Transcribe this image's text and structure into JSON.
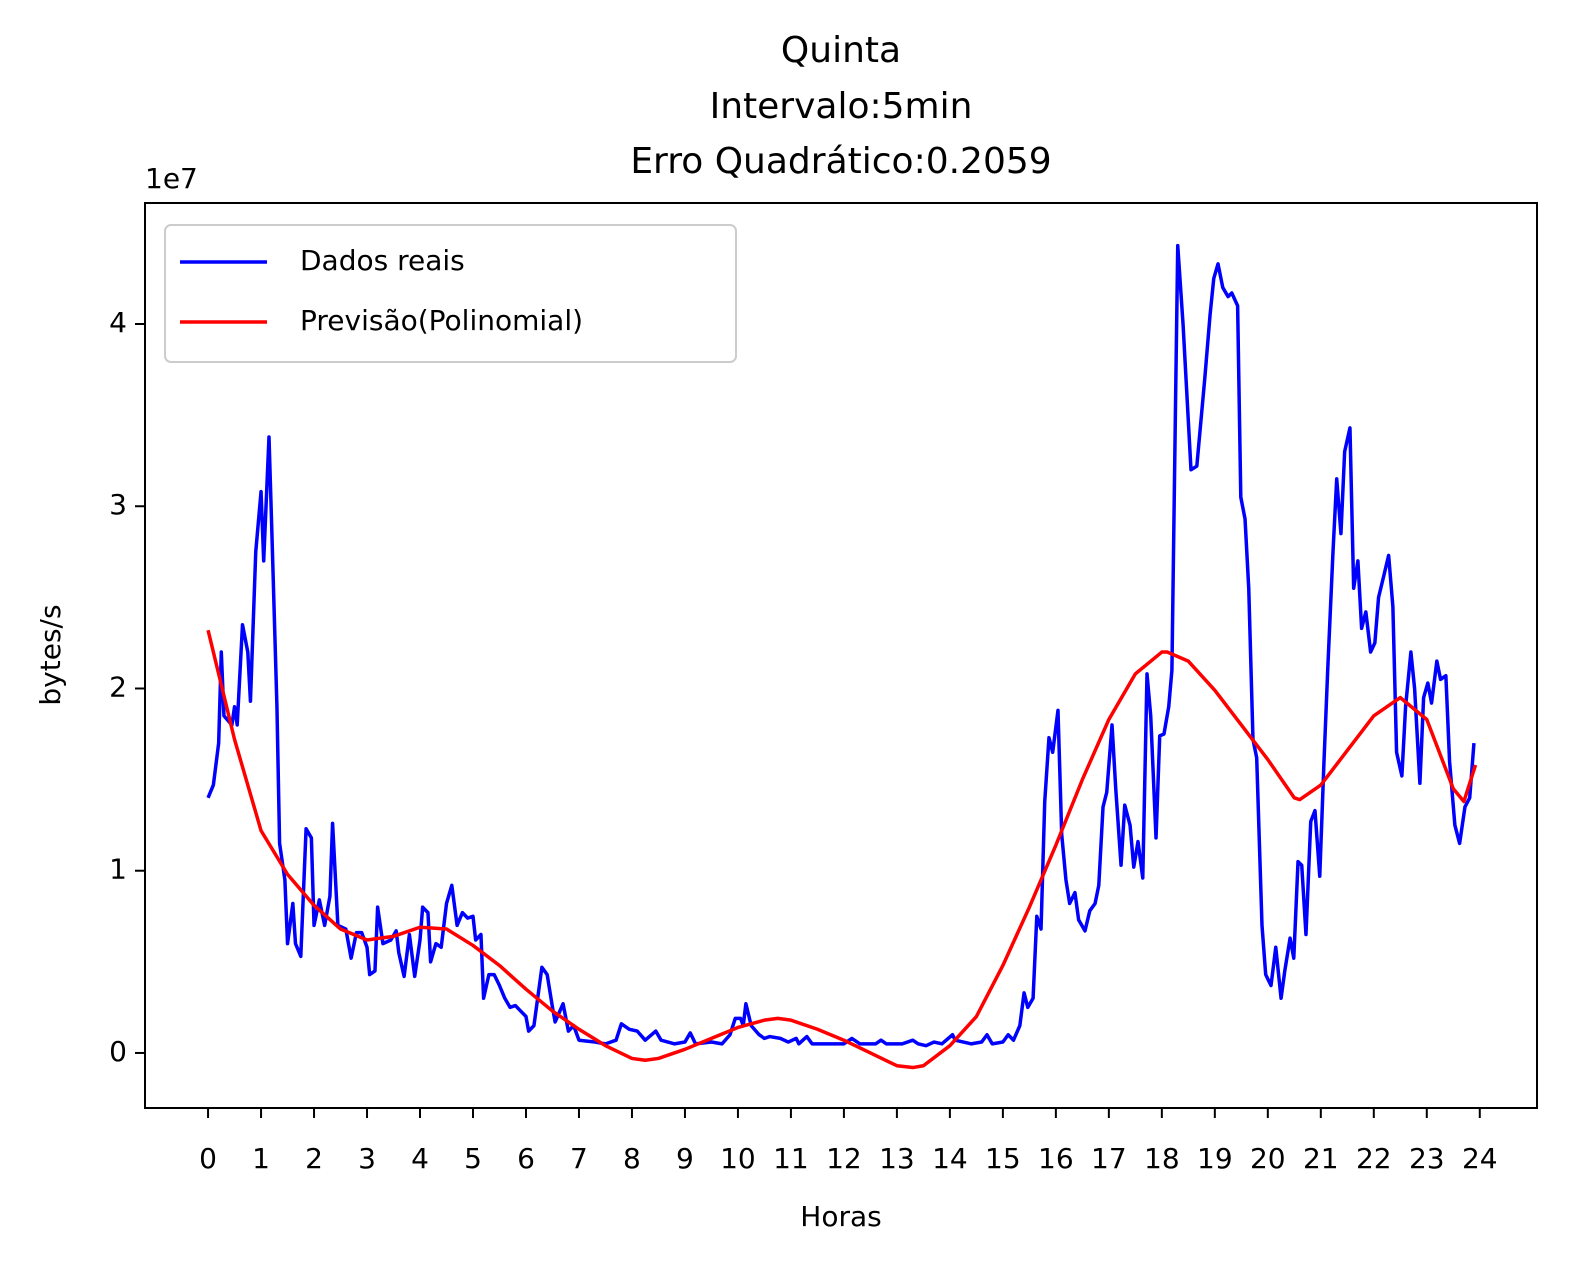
{
  "chart_data": {
    "type": "line",
    "title": [
      "Quinta",
      "Intervalo:5min",
      "Erro Quadrático:0.2059"
    ],
    "x_label": "Horas",
    "y_label": "bytes/s",
    "y_offset_label": "1e7",
    "xlim": [
      -1.19,
      25.08
    ],
    "ylim": [
      -0.302,
      4.664
    ],
    "xticks": [
      0,
      1,
      2,
      3,
      4,
      5,
      6,
      7,
      8,
      9,
      10,
      11,
      12,
      13,
      14,
      15,
      16,
      17,
      18,
      19,
      20,
      21,
      22,
      23,
      24
    ],
    "yticks": [
      0,
      1,
      2,
      3,
      4
    ],
    "legend": "upper left",
    "series": [
      {
        "name": "Dados reais",
        "color": "#0000ff",
        "x": [
          0,
          0.1,
          0.2,
          0.25,
          0.3,
          0.45,
          0.5,
          0.55,
          0.65,
          0.75,
          0.8,
          0.9,
          1.0,
          1.05,
          1.15,
          1.2,
          1.3,
          1.35,
          1.45,
          1.5,
          1.6,
          1.65,
          1.75,
          1.85,
          1.95,
          2.0,
          2.1,
          2.2,
          2.3,
          2.35,
          2.45,
          2.6,
          2.7,
          2.8,
          2.9,
          3.0,
          3.05,
          3.15,
          3.2,
          3.3,
          3.45,
          3.55,
          3.6,
          3.7,
          3.8,
          3.9,
          4.0,
          4.05,
          4.15,
          4.2,
          4.3,
          4.4,
          4.5,
          4.6,
          4.7,
          4.8,
          4.9,
          5.0,
          5.05,
          5.15,
          5.2,
          5.3,
          5.4,
          5.5,
          5.6,
          5.7,
          5.8,
          5.9,
          6.0,
          6.05,
          6.15,
          6.3,
          6.4,
          6.5,
          6.55,
          6.7,
          6.8,
          6.9,
          7.0,
          7.3,
          7.5,
          7.7,
          7.8,
          7.95,
          8.1,
          8.25,
          8.45,
          8.55,
          8.8,
          9.0,
          9.1,
          9.2,
          9.5,
          9.7,
          9.85,
          9.95,
          10.05,
          10.1,
          10.15,
          10.25,
          10.4,
          10.5,
          10.6,
          10.8,
          10.95,
          11.1,
          11.15,
          11.3,
          11.4,
          11.8,
          12.0,
          12.15,
          12.3,
          12.6,
          12.7,
          12.8,
          13.1,
          13.3,
          13.4,
          13.55,
          13.7,
          13.85,
          14.05,
          14.1,
          14.4,
          14.6,
          14.7,
          14.8,
          15.0,
          15.1,
          15.2,
          15.32,
          15.4,
          15.47,
          15.57,
          15.64,
          15.72,
          15.79,
          15.87,
          15.94,
          16.04,
          16.11,
          16.19,
          16.26,
          16.36,
          16.43,
          16.55,
          16.64,
          16.74,
          16.81,
          16.89,
          16.96,
          17.06,
          17.13,
          17.23,
          17.3,
          17.4,
          17.47,
          17.55,
          17.64,
          17.72,
          17.79,
          17.89,
          17.96,
          18.04,
          18.13,
          18.19,
          18.26,
          18.3,
          18.4,
          18.55,
          18.66,
          18.81,
          18.91,
          18.98,
          19.06,
          19.15,
          19.25,
          19.32,
          19.43,
          19.49,
          19.57,
          19.64,
          19.72,
          19.79,
          19.89,
          19.96,
          20.06,
          20.15,
          20.25,
          20.32,
          20.42,
          20.49,
          20.57,
          20.64,
          20.72,
          20.81,
          20.89,
          20.98,
          21.06,
          21.13,
          21.23,
          21.3,
          21.38,
          21.45,
          21.55,
          21.62,
          21.7,
          21.77,
          21.85,
          21.94,
          22.02,
          22.09,
          22.19,
          22.28,
          22.36,
          22.43,
          22.53,
          22.6,
          22.7,
          22.77,
          22.87,
          22.94,
          23.02,
          23.09,
          23.19,
          23.26,
          23.36,
          23.43,
          23.53,
          23.62,
          23.72,
          23.81,
          23.89
        ],
        "values": [
          1.4,
          1.47,
          1.7,
          2.2,
          1.85,
          1.8,
          1.9,
          1.8,
          2.35,
          2.2,
          1.93,
          2.75,
          3.08,
          2.7,
          3.38,
          2.9,
          1.9,
          1.15,
          0.95,
          0.6,
          0.82,
          0.6,
          0.53,
          1.23,
          1.18,
          0.7,
          0.84,
          0.7,
          0.86,
          1.26,
          0.7,
          0.68,
          0.52,
          0.66,
          0.66,
          0.58,
          0.43,
          0.45,
          0.8,
          0.6,
          0.62,
          0.67,
          0.55,
          0.42,
          0.65,
          0.42,
          0.62,
          0.8,
          0.77,
          0.5,
          0.6,
          0.58,
          0.82,
          0.92,
          0.7,
          0.77,
          0.74,
          0.75,
          0.62,
          0.65,
          0.3,
          0.43,
          0.43,
          0.37,
          0.3,
          0.25,
          0.26,
          0.23,
          0.2,
          0.12,
          0.15,
          0.47,
          0.43,
          0.25,
          0.17,
          0.27,
          0.12,
          0.15,
          0.07,
          0.06,
          0.05,
          0.07,
          0.16,
          0.13,
          0.12,
          0.07,
          0.12,
          0.07,
          0.05,
          0.06,
          0.11,
          0.05,
          0.06,
          0.05,
          0.1,
          0.19,
          0.19,
          0.15,
          0.27,
          0.15,
          0.1,
          0.08,
          0.09,
          0.08,
          0.06,
          0.08,
          0.05,
          0.09,
          0.05,
          0.05,
          0.05,
          0.08,
          0.05,
          0.05,
          0.07,
          0.05,
          0.05,
          0.07,
          0.05,
          0.04,
          0.06,
          0.05,
          0.1,
          0.07,
          0.05,
          0.06,
          0.1,
          0.05,
          0.06,
          0.1,
          0.07,
          0.15,
          0.33,
          0.25,
          0.3,
          0.75,
          0.68,
          1.38,
          1.73,
          1.65,
          1.88,
          1.2,
          0.95,
          0.82,
          0.88,
          0.73,
          0.67,
          0.78,
          0.82,
          0.92,
          1.35,
          1.43,
          1.8,
          1.45,
          1.03,
          1.36,
          1.25,
          1.02,
          1.16,
          0.96,
          2.08,
          1.85,
          1.18,
          1.74,
          1.75,
          1.9,
          2.1,
          3.6,
          4.43,
          4.0,
          3.2,
          3.22,
          3.7,
          4.05,
          4.25,
          4.33,
          4.2,
          4.15,
          4.17,
          4.1,
          3.05,
          2.93,
          2.55,
          1.72,
          1.62,
          0.7,
          0.43,
          0.37,
          0.58,
          0.3,
          0.45,
          0.63,
          0.52,
          1.05,
          1.03,
          0.65,
          1.27,
          1.33,
          0.97,
          1.6,
          2.1,
          2.75,
          3.15,
          2.85,
          3.3,
          3.43,
          2.55,
          2.7,
          2.33,
          2.42,
          2.2,
          2.25,
          2.5,
          2.62,
          2.73,
          2.45,
          1.65,
          1.52,
          1.9,
          2.2,
          2.0,
          1.48,
          1.95,
          2.03,
          1.92,
          2.15,
          2.05,
          2.07,
          1.6,
          1.25,
          1.15,
          1.35,
          1.4,
          1.7
        ]
      },
      {
        "name": "Previsão(Polinomial)",
        "color": "#ff0000",
        "x": [
          0,
          0.5,
          1,
          1.5,
          2,
          2.5,
          3,
          3.5,
          4,
          4.5,
          5,
          5.5,
          6,
          6.5,
          7,
          7.5,
          8,
          8.25,
          8.5,
          9,
          9.5,
          10,
          10.5,
          10.75,
          11,
          11.5,
          12,
          12.5,
          13,
          13.3,
          13.5,
          14,
          14.5,
          15,
          15.5,
          16,
          16.5,
          17,
          17.5,
          18,
          18.1,
          18.5,
          19,
          19.5,
          20,
          20.5,
          20.6,
          21,
          21.5,
          22,
          22.5,
          23,
          23.5,
          23.7,
          23.92
        ],
        "values": [
          2.32,
          1.72,
          1.22,
          0.98,
          0.81,
          0.68,
          0.62,
          0.64,
          0.69,
          0.68,
          0.59,
          0.48,
          0.35,
          0.23,
          0.13,
          0.04,
          -0.03,
          -0.04,
          -0.03,
          0.02,
          0.08,
          0.14,
          0.18,
          0.19,
          0.18,
          0.13,
          0.07,
          0.0,
          -0.07,
          -0.08,
          -0.07,
          0.04,
          0.2,
          0.48,
          0.8,
          1.14,
          1.5,
          1.83,
          2.08,
          2.2,
          2.2,
          2.15,
          1.99,
          1.8,
          1.61,
          1.4,
          1.39,
          1.47,
          1.66,
          1.85,
          1.95,
          1.83,
          1.45,
          1.38,
          1.58
        ]
      }
    ]
  }
}
